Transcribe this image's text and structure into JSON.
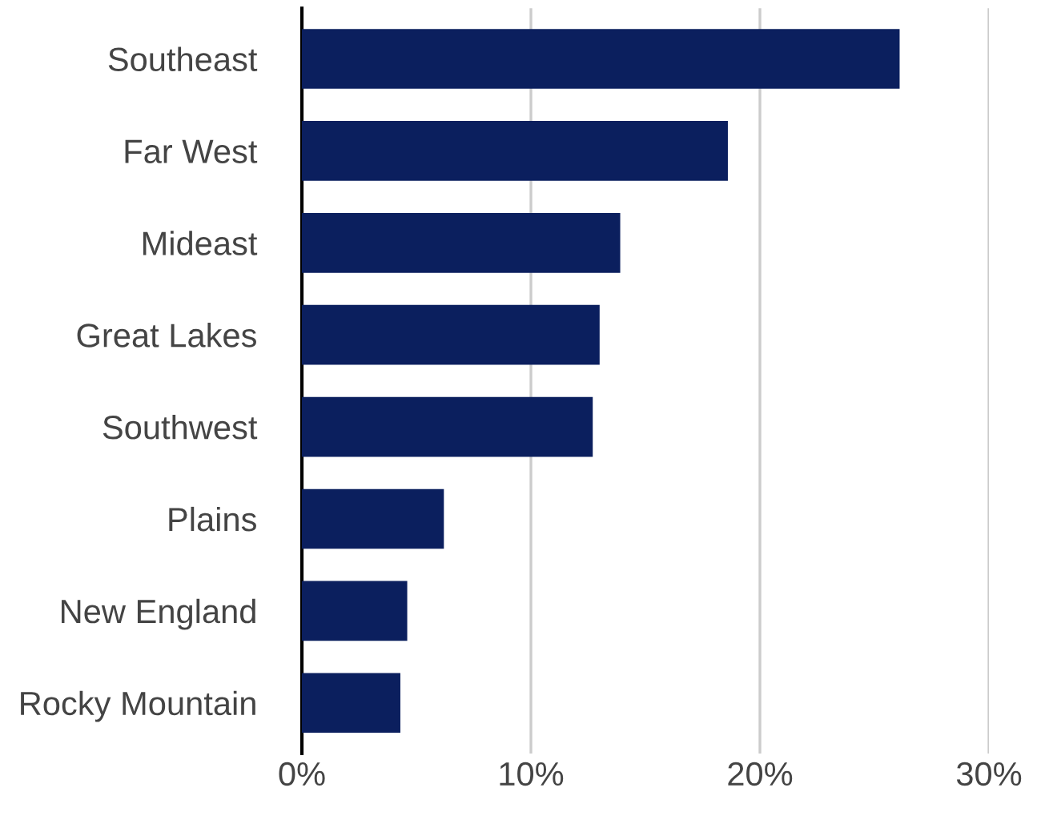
{
  "chart_data": {
    "type": "bar",
    "orientation": "horizontal",
    "categories": [
      "Southeast",
      "Far West",
      "Mideast",
      "Great Lakes",
      "Southwest",
      "Plains",
      "New England",
      "Rocky Mountain"
    ],
    "values": [
      26.1,
      18.6,
      13.9,
      13.0,
      12.7,
      6.2,
      4.6,
      4.3
    ],
    "color": "#0b1f5e",
    "xlim": [
      0,
      30
    ],
    "xticks": [
      {
        "value": 0,
        "label": "0%"
      },
      {
        "value": 10,
        "label": "10%"
      },
      {
        "value": 20,
        "label": "20%"
      },
      {
        "value": 30,
        "label": "30%"
      }
    ],
    "grid": "x"
  }
}
